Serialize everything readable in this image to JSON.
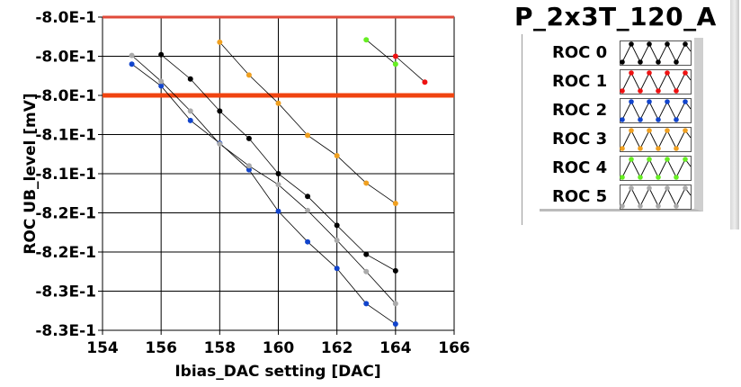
{
  "chart_data": {
    "type": "line",
    "title": "P_2x3T_120_A",
    "xlabel": "Ibias_DAC setting [DAC]",
    "ylabel": "ROC UB_level [mV]",
    "xlim": [
      154,
      166
    ],
    "ylim": [
      -0.835,
      -0.795
    ],
    "x_ticks": [
      154,
      156,
      158,
      160,
      162,
      164,
      166
    ],
    "x_tick_labels": [
      "154",
      "156",
      "158",
      "160",
      "162",
      "164",
      "166"
    ],
    "y_ticks": [
      -0.795,
      -0.8,
      -0.805,
      -0.81,
      -0.815,
      -0.82,
      -0.825,
      -0.83,
      -0.835
    ],
    "y_tick_labels": [
      "-8.0E-1",
      "-8.0E-1",
      "-8.0E-1",
      "-8.1E-1",
      "-8.1E-1",
      "-8.2E-1",
      "-8.2E-1",
      "-8.3E-1",
      "-8.3E-1"
    ],
    "grid": true,
    "legend_placement": "right",
    "reference_lines": [
      {
        "y": -0.795,
        "color": "#e04a3a",
        "width": "thin"
      },
      {
        "y": -0.805,
        "color": "#f04410",
        "width": "thick"
      }
    ],
    "series": [
      {
        "name": "ROC 0",
        "color": "#000000",
        "x": [
          156,
          157,
          158,
          159,
          160,
          161,
          162,
          163,
          164
        ],
        "y": [
          -0.7998,
          -0.8029,
          -0.807,
          -0.8105,
          -0.815,
          -0.8179,
          -0.8216,
          -0.8253,
          -0.8274
        ]
      },
      {
        "name": "ROC 1",
        "color": "#ee1111",
        "x": [
          164,
          165
        ],
        "y": [
          -0.8,
          -0.8033
        ]
      },
      {
        "name": "ROC 2",
        "color": "#1144cc",
        "x": [
          155,
          156,
          157,
          158,
          159,
          160,
          161,
          162,
          163,
          164
        ],
        "y": [
          -0.801,
          -0.8038,
          -0.8082,
          -0.8111,
          -0.8145,
          -0.8198,
          -0.8237,
          -0.8271,
          -0.8316,
          -0.8342
        ]
      },
      {
        "name": "ROC 3",
        "color": "#f0a020",
        "x": [
          158,
          159,
          160,
          161,
          162,
          163,
          164
        ],
        "y": [
          -0.7982,
          -0.8024,
          -0.806,
          -0.8101,
          -0.8127,
          -0.8162,
          -0.8188
        ]
      },
      {
        "name": "ROC 4",
        "color": "#66ee22",
        "x": [
          163,
          164
        ],
        "y": [
          -0.7979,
          -0.801
        ]
      },
      {
        "name": "ROC 5",
        "color": "#aaaaaa",
        "x": [
          155,
          156,
          157,
          158,
          159,
          160,
          161,
          162,
          163,
          164
        ],
        "y": [
          -0.7999,
          -0.8032,
          -0.807,
          -0.8112,
          -0.814,
          -0.8164,
          -0.8197,
          -0.8235,
          -0.8275,
          -0.8316
        ]
      }
    ]
  }
}
